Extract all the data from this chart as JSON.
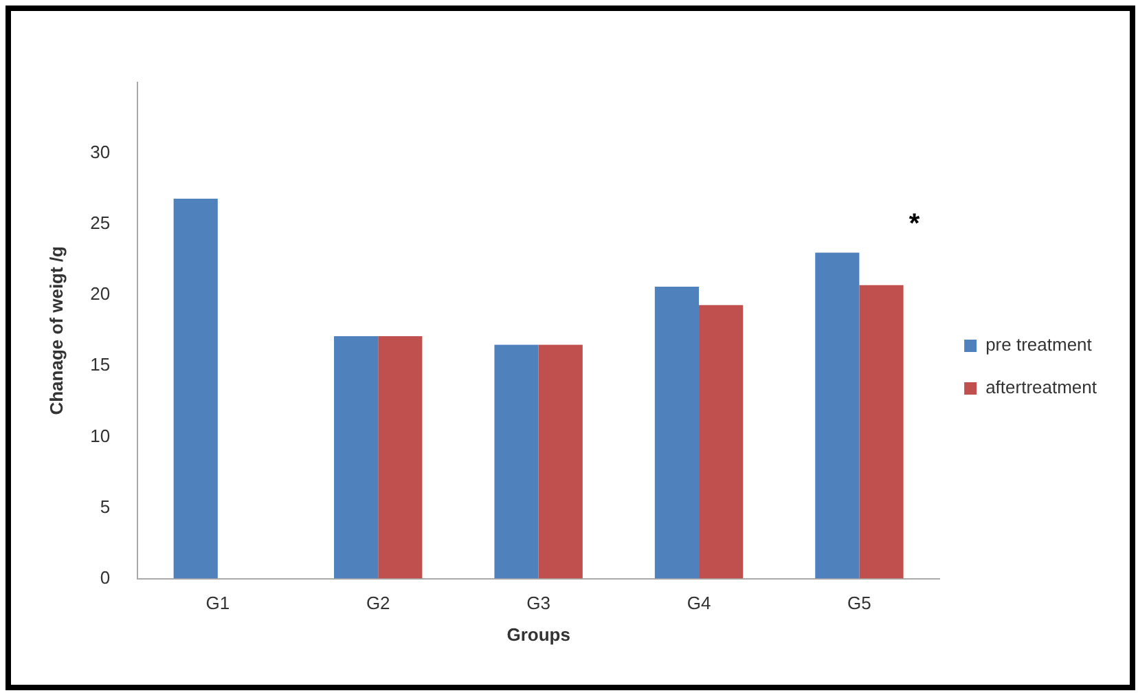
{
  "chart_data": {
    "type": "bar",
    "xlabel": "Groups",
    "ylabel": "Chanage of weigt /g",
    "categories": [
      "G1",
      "G2",
      "G3",
      "G4",
      "G5"
    ],
    "series": [
      {
        "name": "pre treatment",
        "color": "#4f81bd",
        "values": [
          26.8,
          17.1,
          16.5,
          20.6,
          23.0
        ]
      },
      {
        "name": "aftertreatment",
        "color": "#c0504d",
        "values": [
          null,
          17.1,
          16.5,
          19.3,
          20.7
        ]
      }
    ],
    "ylim": [
      0,
      35
    ],
    "yticks": [
      0,
      5,
      10,
      15,
      20,
      25,
      30
    ],
    "grid": false,
    "legend": "right",
    "annotations": [
      "*"
    ]
  }
}
